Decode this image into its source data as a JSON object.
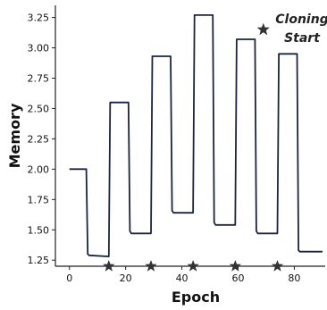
{
  "chart_data": {
    "type": "line",
    "xlabel": "Epoch",
    "ylabel": "Memory",
    "xlim": [
      -5,
      91
    ],
    "ylim": [
      1.2,
      3.35
    ],
    "x_ticks": [
      0,
      20,
      40,
      60,
      80
    ],
    "y_ticks": [
      1.25,
      1.5,
      1.75,
      2.0,
      2.25,
      2.5,
      2.75,
      3.0,
      3.25
    ],
    "y_tick_labels": [
      "1.25",
      "1.50",
      "1.75",
      "2.00",
      "2.25",
      "2.50",
      "2.75",
      "3.00",
      "3.25"
    ],
    "series": [
      {
        "color": "#1a2440",
        "x": [
          0,
          6,
          6.5,
          7,
          14,
          14.5,
          15,
          21,
          21.5,
          22,
          29,
          29.5,
          30,
          36,
          36.5,
          37,
          44,
          44.5,
          45,
          51,
          51.5,
          52,
          59,
          59.5,
          60,
          66,
          66.5,
          67,
          74,
          74.5,
          75,
          81,
          81.5,
          82,
          90
        ],
        "y": [
          2.0,
          2.0,
          1.3,
          1.29,
          1.28,
          2.55,
          2.55,
          2.55,
          1.49,
          1.47,
          1.47,
          2.93,
          2.93,
          2.93,
          1.66,
          1.64,
          1.64,
          3.27,
          3.27,
          3.27,
          1.56,
          1.54,
          1.54,
          3.07,
          3.07,
          3.07,
          1.49,
          1.47,
          1.47,
          2.95,
          2.95,
          2.95,
          1.33,
          1.32,
          1.32
        ]
      }
    ],
    "cloning_markers": {
      "marker": "star",
      "color": "#333333",
      "x": [
        14,
        29,
        44,
        59,
        74
      ]
    },
    "annotation": {
      "marker": "star",
      "lines": [
        "Cloning",
        "Start"
      ],
      "star_x": 69,
      "star_y": 3.15
    },
    "grid": false
  }
}
